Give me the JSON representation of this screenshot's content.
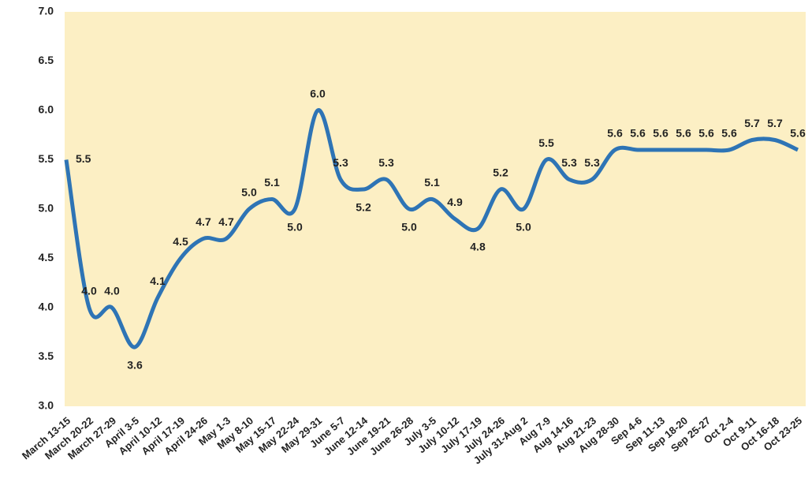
{
  "chart_data": {
    "type": "line",
    "categories": [
      "March 13-15",
      "March 20-22",
      "March 27-29",
      "April 3-5",
      "April 10-12",
      "April 17-19",
      "April 24-26",
      "May 1-3",
      "May 8-10",
      "May 15-17",
      "May 22-24",
      "May 29-31",
      "June 5-7",
      "June 12-14",
      "June 19-21",
      "June 26-28",
      "July 3-5",
      "July 10-12",
      "July 17-19",
      "July 24-26",
      "July 31-Aug 2",
      "Aug 7-9",
      "Aug 14-16",
      "Aug 21-23",
      "Aug 28-30",
      "Sep 4-6",
      "Sep 11-13",
      "Sep 18-20",
      "Sep 25-27",
      "Oct 2-4",
      "Oct 9-11",
      "Oct 16-18",
      "Oct 23-25"
    ],
    "values": [
      5.5,
      4.0,
      4.0,
      3.6,
      4.1,
      4.5,
      4.7,
      4.7,
      5.0,
      5.1,
      5.0,
      6.0,
      5.3,
      5.2,
      5.3,
      5.0,
      5.1,
      4.9,
      4.8,
      5.2,
      5.0,
      5.5,
      5.3,
      5.3,
      5.6,
      5.6,
      5.6,
      5.6,
      5.6,
      5.6,
      5.7,
      5.7,
      5.6
    ],
    "value_labels": [
      "5.5",
      "4.0",
      "4.0",
      "3.6",
      "4.1",
      "4.5",
      "4.7",
      "4.7",
      "5.0",
      "5.1",
      "5.0",
      "6.0",
      "5.3",
      "5.2",
      "5.3",
      "5.0",
      "5.1",
      "4.9",
      "4.8",
      "5.2",
      "5.0",
      "5.5",
      "5.3",
      "5.3",
      "5.6",
      "5.6",
      "5.6",
      "5.6",
      "5.6",
      "5.6",
      "5.7",
      "5.7",
      "5.6"
    ],
    "color": "#2e74b5",
    "ylim": [
      3.0,
      7.0
    ],
    "yticks": [
      {
        "value": 3.0,
        "label": "3.0"
      },
      3.5,
      {
        "value": 4.0,
        "label": "4.0"
      },
      4.5,
      {
        "value": 5.0,
        "label": "5.0"
      },
      5.5,
      {
        "value": 6.0,
        "label": "6.0"
      },
      6.5,
      {
        "value": 7.0,
        "label": "7.0"
      }
    ]
  }
}
